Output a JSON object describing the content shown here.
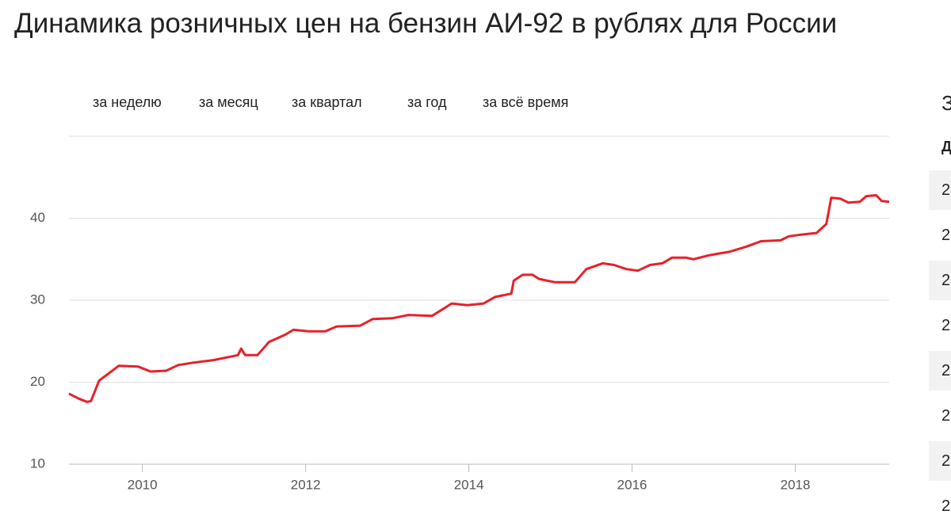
{
  "title": "Динамика розничных цен на бензин АИ-92 в рублях для России",
  "buttons": [
    "за неделю",
    "за месяц",
    "за квартал",
    "за год",
    "за всё время"
  ],
  "side_panel": {
    "title": "З",
    "header": "Д",
    "rows": [
      "2",
      "2",
      "2",
      "2",
      "2",
      "2",
      "2",
      "2"
    ]
  },
  "chart_data": {
    "type": "line",
    "color": "#e8202a",
    "x": [
      2009.1,
      2009.22,
      2009.32,
      2009.37,
      2009.47,
      2009.71,
      2009.95,
      2010.1,
      2010.29,
      2010.44,
      2010.63,
      2010.87,
      2011.17,
      2011.21,
      2011.26,
      2011.41,
      2011.55,
      2011.75,
      2011.85,
      2012.04,
      2012.24,
      2012.38,
      2012.67,
      2012.82,
      2013.06,
      2013.26,
      2013.55,
      2013.79,
      2013.98,
      2014.18,
      2014.32,
      2014.52,
      2014.55,
      2014.66,
      2014.78,
      2014.86,
      2015.05,
      2015.3,
      2015.44,
      2015.64,
      2015.78,
      2015.93,
      2016.07,
      2016.22,
      2016.37,
      2016.49,
      2016.66,
      2016.75,
      2016.95,
      2017.19,
      2017.39,
      2017.58,
      2017.82,
      2017.92,
      2018.07,
      2018.26,
      2018.38,
      2018.44,
      2018.55,
      2018.65,
      2018.79,
      2018.87,
      2018.99,
      2019.06,
      2019.15
    ],
    "values": [
      18.6,
      18.0,
      17.6,
      17.7,
      20.2,
      22.0,
      21.9,
      21.3,
      21.4,
      22.1,
      22.4,
      22.7,
      23.3,
      24.1,
      23.3,
      23.3,
      24.9,
      25.8,
      26.4,
      26.2,
      26.2,
      26.8,
      26.9,
      27.7,
      27.8,
      28.2,
      28.1,
      29.6,
      29.4,
      29.6,
      30.4,
      30.8,
      32.4,
      33.1,
      33.1,
      32.6,
      32.2,
      32.2,
      33.8,
      34.5,
      34.3,
      33.8,
      33.6,
      34.3,
      34.5,
      35.2,
      35.2,
      35.0,
      35.5,
      35.9,
      36.5,
      37.2,
      37.3,
      37.8,
      38.0,
      38.2,
      39.3,
      42.5,
      42.4,
      41.9,
      42.0,
      42.7,
      42.8,
      42.1,
      42.0
    ],
    "xlim": [
      2009.1,
      2019.15
    ],
    "xticks": [
      2010,
      2012,
      2014,
      2016,
      2018
    ],
    "ylim": [
      10,
      50
    ],
    "yticks": [
      10,
      20,
      30,
      40
    ],
    "grid": true
  }
}
